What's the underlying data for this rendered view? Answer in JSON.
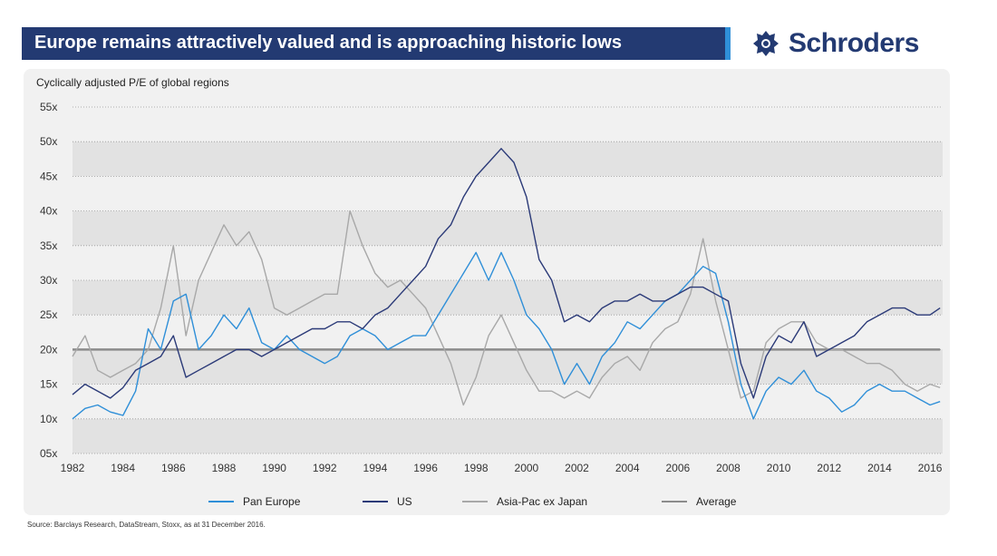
{
  "header": {
    "title": "Europe remains attractively valued and is approaching historic lows",
    "brand": "Schroders",
    "brand_icon": "crest-icon"
  },
  "colors": {
    "title_bar": "#233a72",
    "title_accent": "#2f8fd8",
    "pan_europe": "#2f8fd8",
    "us": "#2b3a78",
    "asia": "#a8a8a8",
    "average": "#8c8c8c"
  },
  "chart_data": {
    "type": "line",
    "subtitle": "Cyclically adjusted P/E of global regions",
    "ylim": [
      5,
      55
    ],
    "xlim": [
      1982,
      2016.5
    ],
    "yticks": [
      {
        "value": 55,
        "label": "55x"
      },
      {
        "value": 50,
        "label": "50x"
      },
      {
        "value": 45,
        "label": "45x"
      },
      {
        "value": 40,
        "label": "40x"
      },
      {
        "value": 35,
        "label": "35x"
      },
      {
        "value": 30,
        "label": "30x"
      },
      {
        "value": 25,
        "label": "25x"
      },
      {
        "value": 20,
        "label": "20x"
      },
      {
        "value": 15,
        "label": "15x"
      },
      {
        "value": 10,
        "label": "10x"
      },
      {
        "value": 5,
        "label": "05x"
      }
    ],
    "xticks": [
      {
        "value": 1982,
        "label": "1982"
      },
      {
        "value": 1984,
        "label": "1984"
      },
      {
        "value": 1986,
        "label": "1986"
      },
      {
        "value": 1988,
        "label": "1988"
      },
      {
        "value": 1990,
        "label": "1990"
      },
      {
        "value": 1992,
        "label": "1992"
      },
      {
        "value": 1994,
        "label": "1994"
      },
      {
        "value": 1996,
        "label": "1996"
      },
      {
        "value": 1998,
        "label": "1998"
      },
      {
        "value": 2000,
        "label": "2000"
      },
      {
        "value": 2002,
        "label": "2002"
      },
      {
        "value": 2004,
        "label": "2004"
      },
      {
        "value": 2006,
        "label": "2006"
      },
      {
        "value": 2008,
        "label": "2008"
      },
      {
        "value": 2010,
        "label": "2010"
      },
      {
        "value": 2012,
        "label": "2012"
      },
      {
        "value": 2014,
        "label": "2014"
      },
      {
        "value": 2016,
        "label": "2016"
      }
    ],
    "grid": "dotted horizontal, alternating shaded bands",
    "legend_position": "bottom",
    "series": [
      {
        "name": "Pan Europe",
        "color": "#2f8fd8",
        "x": [
          1982,
          1982.5,
          1983,
          1983.5,
          1984,
          1984.5,
          1985,
          1985.5,
          1986,
          1986.5,
          1987,
          1987.5,
          1988,
          1988.5,
          1989,
          1989.5,
          1990,
          1990.5,
          1991,
          1991.5,
          1992,
          1992.5,
          1993,
          1993.5,
          1994,
          1994.5,
          1995,
          1995.5,
          1996,
          1996.5,
          1997,
          1997.5,
          1998,
          1998.5,
          1999,
          1999.5,
          2000,
          2000.5,
          2001,
          2001.5,
          2002,
          2002.5,
          2003,
          2003.5,
          2004,
          2004.5,
          2005,
          2005.5,
          2006,
          2006.5,
          2007,
          2007.5,
          2008,
          2008.5,
          2009,
          2009.5,
          2010,
          2010.5,
          2011,
          2011.5,
          2012,
          2012.5,
          2013,
          2013.5,
          2014,
          2014.5,
          2015,
          2015.5,
          2016,
          2016.4
        ],
        "y": [
          10,
          11.5,
          12,
          11,
          10.5,
          14,
          23,
          20,
          27,
          28,
          20,
          22,
          25,
          23,
          26,
          21,
          20,
          22,
          20,
          19,
          18,
          19,
          22,
          23,
          22,
          20,
          21,
          22,
          22,
          25,
          28,
          31,
          34,
          30,
          34,
          30,
          25,
          23,
          20,
          15,
          18,
          15,
          19,
          21,
          24,
          23,
          25,
          27,
          28,
          30,
          32,
          31,
          24,
          15,
          10,
          14,
          16,
          15,
          17,
          14,
          13,
          11,
          12,
          14,
          15,
          14,
          14,
          13,
          12,
          12.5
        ]
      },
      {
        "name": "US",
        "color": "#2b3a78",
        "x": [
          1982,
          1982.5,
          1983,
          1983.5,
          1984,
          1984.5,
          1985,
          1985.5,
          1986,
          1986.5,
          1987,
          1987.5,
          1988,
          1988.5,
          1989,
          1989.5,
          1990,
          1990.5,
          1991,
          1991.5,
          1992,
          1992.5,
          1993,
          1993.5,
          1994,
          1994.5,
          1995,
          1995.5,
          1996,
          1996.5,
          1997,
          1997.5,
          1998,
          1998.5,
          1999,
          1999.5,
          2000,
          2000.5,
          2001,
          2001.5,
          2002,
          2002.5,
          2003,
          2003.5,
          2004,
          2004.5,
          2005,
          2005.5,
          2006,
          2006.5,
          2007,
          2007.5,
          2008,
          2008.5,
          2009,
          2009.5,
          2010,
          2010.5,
          2011,
          2011.5,
          2012,
          2012.5,
          2013,
          2013.5,
          2014,
          2014.5,
          2015,
          2015.5,
          2016,
          2016.4
        ],
        "y": [
          13.5,
          15,
          14,
          13,
          14.5,
          17,
          18,
          19,
          22,
          16,
          17,
          18,
          19,
          20,
          20,
          19,
          20,
          21,
          22,
          23,
          23,
          24,
          24,
          23,
          25,
          26,
          28,
          30,
          32,
          36,
          38,
          42,
          45,
          47,
          49,
          47,
          42,
          33,
          30,
          24,
          25,
          24,
          26,
          27,
          27,
          28,
          27,
          27,
          28,
          29,
          29,
          28,
          27,
          18,
          13,
          19,
          22,
          21,
          24,
          19,
          20,
          21,
          22,
          24,
          25,
          26,
          26,
          25,
          25,
          26
        ]
      },
      {
        "name": "Asia-Pac ex Japan",
        "color": "#a8a8a8",
        "x": [
          1982,
          1982.5,
          1983,
          1983.5,
          1984,
          1984.5,
          1985,
          1985.5,
          1986,
          1986.5,
          1987,
          1987.5,
          1988,
          1988.5,
          1989,
          1989.5,
          1990,
          1990.5,
          1991,
          1991.5,
          1992,
          1992.5,
          1993,
          1993.5,
          1994,
          1994.5,
          1995,
          1995.5,
          1996,
          1996.5,
          1997,
          1997.5,
          1998,
          1998.5,
          1999,
          1999.5,
          2000,
          2000.5,
          2001,
          2001.5,
          2002,
          2002.5,
          2003,
          2003.5,
          2004,
          2004.5,
          2005,
          2005.5,
          2006,
          2006.5,
          2007,
          2007.5,
          2008,
          2008.5,
          2009,
          2009.5,
          2010,
          2010.5,
          2011,
          2011.5,
          2012,
          2012.5,
          2013,
          2013.5,
          2014,
          2014.5,
          2015,
          2015.5,
          2016,
          2016.4
        ],
        "y": [
          19,
          22,
          17,
          16,
          17,
          18,
          20,
          26,
          35,
          22,
          30,
          34,
          38,
          35,
          37,
          33,
          26,
          25,
          26,
          27,
          28,
          28,
          40,
          35,
          31,
          29,
          30,
          28,
          26,
          22,
          18,
          12,
          16,
          22,
          25,
          21,
          17,
          14,
          14,
          13,
          14,
          13,
          16,
          18,
          19,
          17,
          21,
          23,
          24,
          28,
          36,
          27,
          20,
          13,
          14,
          21,
          23,
          24,
          24,
          21,
          20,
          20,
          19,
          18,
          18,
          17,
          15,
          14,
          15,
          14.5
        ]
      },
      {
        "name": "Average",
        "color": "#8c8c8c",
        "x": [
          1982,
          2016.4
        ],
        "y": [
          20,
          20
        ]
      }
    ]
  },
  "legend": [
    {
      "label": "Pan Europe",
      "color": "#2f8fd8"
    },
    {
      "label": "US",
      "color": "#2b3a78"
    },
    {
      "label": "Asia-Pac ex Japan",
      "color": "#a8a8a8"
    },
    {
      "label": "Average",
      "color": "#8c8c8c"
    }
  ],
  "footer": {
    "source": "Source: Barclays Research, DataStream, Stoxx, as at 31 December 2016."
  }
}
